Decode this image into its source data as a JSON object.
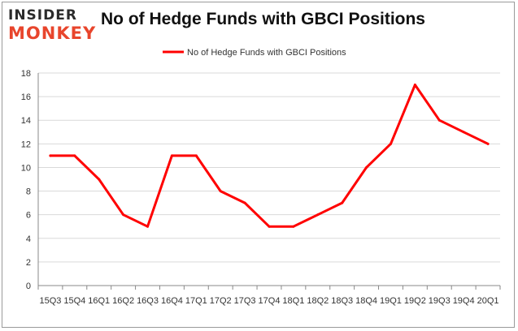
{
  "brand": {
    "logo_top": "INSIDER",
    "logo_bottom": "MONKEY"
  },
  "chart_data": {
    "type": "line",
    "title": "No of Hedge Funds with GBCI Positions",
    "xlabel": "",
    "ylabel": "",
    "categories": [
      "15Q3",
      "15Q4",
      "16Q1",
      "16Q2",
      "16Q3",
      "16Q4",
      "17Q1",
      "17Q2",
      "17Q3",
      "17Q4",
      "18Q1",
      "18Q2",
      "18Q3",
      "18Q4",
      "19Q1",
      "19Q2",
      "19Q3",
      "19Q4",
      "20Q1"
    ],
    "series": [
      {
        "name": "No of Hedge Funds with GBCI Positions",
        "values": [
          11,
          11,
          9,
          6,
          5,
          11,
          11,
          8,
          7,
          5,
          5,
          6,
          7,
          10,
          12,
          17,
          14,
          13,
          12
        ],
        "color": "#ff0000"
      }
    ],
    "ylim": [
      0,
      18
    ],
    "yticks": [
      0,
      2,
      4,
      6,
      8,
      10,
      12,
      14,
      16,
      18
    ],
    "grid": true,
    "legend_position": "top-center",
    "colors": {
      "line": "#ff0000",
      "grid": "#d9d9d9",
      "axis": "#888888"
    }
  }
}
